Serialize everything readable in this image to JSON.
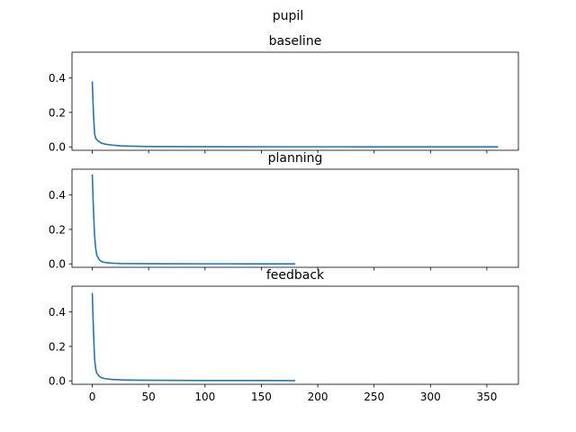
{
  "figure": {
    "suptitle": "pupil"
  },
  "colors": {
    "line": "#1f77b4",
    "axes": "#000000",
    "background": "#ffffff"
  },
  "chart_data": [
    {
      "type": "line",
      "title": "baseline",
      "xlabel": "",
      "ylabel": "",
      "xlim": [
        -18,
        378
      ],
      "ylim": [
        -0.02,
        0.55
      ],
      "x_ticks": [
        0,
        50,
        100,
        150,
        200,
        250,
        300,
        350
      ],
      "x_tick_labels_visible": false,
      "y_ticks": [
        0.0,
        0.2,
        0.4
      ],
      "y_tick_labels": [
        "0.0",
        "0.2",
        "0.4"
      ],
      "grid": false,
      "series": [
        {
          "x": [
            0,
            1,
            2,
            3,
            5,
            8,
            12,
            18,
            25,
            35,
            50,
            80,
            120,
            180,
            240,
            300,
            360
          ],
          "y": [
            0.38,
            0.2,
            0.08,
            0.05,
            0.035,
            0.022,
            0.015,
            0.01,
            0.006,
            0.004,
            0.002,
            0.001,
            0.0005,
            0.0003,
            0.0002,
            0.0001,
            0.0001
          ]
        }
      ]
    },
    {
      "type": "line",
      "title": "planning",
      "xlabel": "",
      "ylabel": "",
      "xlim": [
        -18,
        378
      ],
      "ylim": [
        -0.02,
        0.55
      ],
      "x_ticks": [
        0,
        50,
        100,
        150,
        200,
        250,
        300,
        350
      ],
      "x_tick_labels_visible": false,
      "y_ticks": [
        0.0,
        0.2,
        0.4
      ],
      "y_tick_labels": [
        "0.0",
        "0.2",
        "0.4"
      ],
      "grid": false,
      "series": [
        {
          "x": [
            0,
            1,
            2,
            3,
            4,
            6,
            8,
            12,
            18,
            25,
            40,
            60,
            100,
            140,
            180
          ],
          "y": [
            0.52,
            0.32,
            0.17,
            0.09,
            0.05,
            0.025,
            0.014,
            0.007,
            0.004,
            0.002,
            0.001,
            0.0005,
            0.0003,
            0.0002,
            0.0001
          ]
        }
      ]
    },
    {
      "type": "line",
      "title": "feedback",
      "xlabel": "",
      "ylabel": "",
      "xlim": [
        -18,
        378
      ],
      "ylim": [
        -0.02,
        0.55
      ],
      "x_ticks": [
        0,
        50,
        100,
        150,
        200,
        250,
        300,
        350
      ],
      "x_tick_labels": [
        "0",
        "50",
        "100",
        "150",
        "200",
        "250",
        "300",
        "350"
      ],
      "x_tick_labels_visible": true,
      "y_ticks": [
        0.0,
        0.2,
        0.4
      ],
      "y_tick_labels": [
        "0.0",
        "0.2",
        "0.4"
      ],
      "grid": false,
      "series": [
        {
          "x": [
            0,
            1,
            2,
            3,
            4,
            6,
            8,
            12,
            18,
            25,
            40,
            60,
            100,
            140,
            180
          ],
          "y": [
            0.51,
            0.3,
            0.13,
            0.07,
            0.045,
            0.028,
            0.018,
            0.012,
            0.008,
            0.006,
            0.004,
            0.003,
            0.002,
            0.002,
            0.0015
          ]
        }
      ]
    }
  ]
}
